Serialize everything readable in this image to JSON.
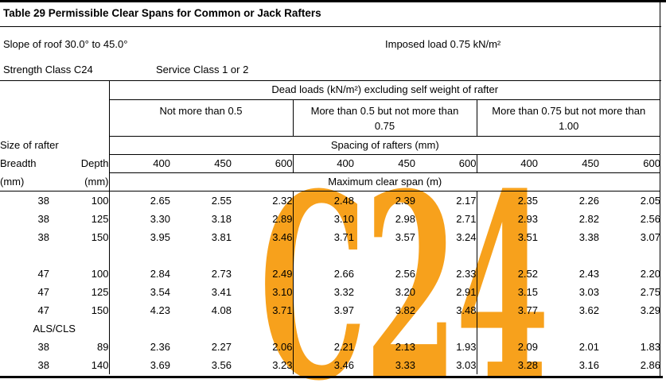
{
  "header": {
    "title": "Table 29 Permissible Clear Spans for Common or Jack Rafters",
    "slope": "Slope of roof 30.0° to 45.0°",
    "imposed_load": "Imposed load 0.75 kN/m²",
    "strength_class": "Strength Class C24",
    "service_class": "Service Class 1 or 2"
  },
  "watermark": {
    "text": "C24",
    "color": "#F7A11C"
  },
  "table": {
    "dead_loads_header": "Dead loads (kN/m²) excluding self weight of rafter",
    "load_groups": [
      "Not more than 0.5",
      "More than 0.5 but not more than 0.75",
      "More than 0.75 but not more than 1.00"
    ],
    "size_of_rafter_label": "Size of rafter",
    "spacing_header": "Spacing of rafters (mm)",
    "col_breadth": "Breadth",
    "col_depth": "Depth",
    "unit_mm_1": "(mm)",
    "unit_mm_2": "(mm)",
    "spacings": [
      "400",
      "450",
      "600",
      "400",
      "450",
      "600",
      "400",
      "450",
      "600"
    ],
    "max_span_header": "Maximum clear span (m)",
    "rows": [
      {
        "type": "data",
        "breadth": "38",
        "depth": "100",
        "values": [
          "2.65",
          "2.55",
          "2.32",
          "2.48",
          "2.39",
          "2.17",
          "2.35",
          "2.26",
          "2.05"
        ]
      },
      {
        "type": "data",
        "breadth": "38",
        "depth": "125",
        "values": [
          "3.30",
          "3.18",
          "2.89",
          "3.10",
          "2.98",
          "2.71",
          "2.93",
          "2.82",
          "2.56"
        ]
      },
      {
        "type": "data",
        "breadth": "38",
        "depth": "150",
        "values": [
          "3.95",
          "3.81",
          "3.46",
          "3.71",
          "3.57",
          "3.24",
          "3.51",
          "3.38",
          "3.07"
        ]
      },
      {
        "type": "spacer"
      },
      {
        "type": "data",
        "breadth": "47",
        "depth": "100",
        "values": [
          "2.84",
          "2.73",
          "2.49",
          "2.66",
          "2.56",
          "2.33",
          "2.52",
          "2.43",
          "2.20"
        ]
      },
      {
        "type": "data",
        "breadth": "47",
        "depth": "125",
        "values": [
          "3.54",
          "3.41",
          "3.10",
          "3.32",
          "3.20",
          "2.91",
          "3.15",
          "3.03",
          "2.75"
        ]
      },
      {
        "type": "data",
        "breadth": "47",
        "depth": "150",
        "values": [
          "4.23",
          "4.08",
          "3.71",
          "3.97",
          "3.82",
          "3.48",
          "3.77",
          "3.62",
          "3.29"
        ]
      },
      {
        "type": "label",
        "label": "ALS/CLS"
      },
      {
        "type": "data",
        "breadth": "38",
        "depth": "89",
        "values": [
          "2.36",
          "2.27",
          "2.06",
          "2.21",
          "2.13",
          "1.93",
          "2.09",
          "2.01",
          "1.83"
        ]
      },
      {
        "type": "data",
        "breadth": "38",
        "depth": "140",
        "values": [
          "3.69",
          "3.56",
          "3.23",
          "3.46",
          "3.33",
          "3.03",
          "3.28",
          "3.16",
          "2.86"
        ]
      }
    ]
  }
}
